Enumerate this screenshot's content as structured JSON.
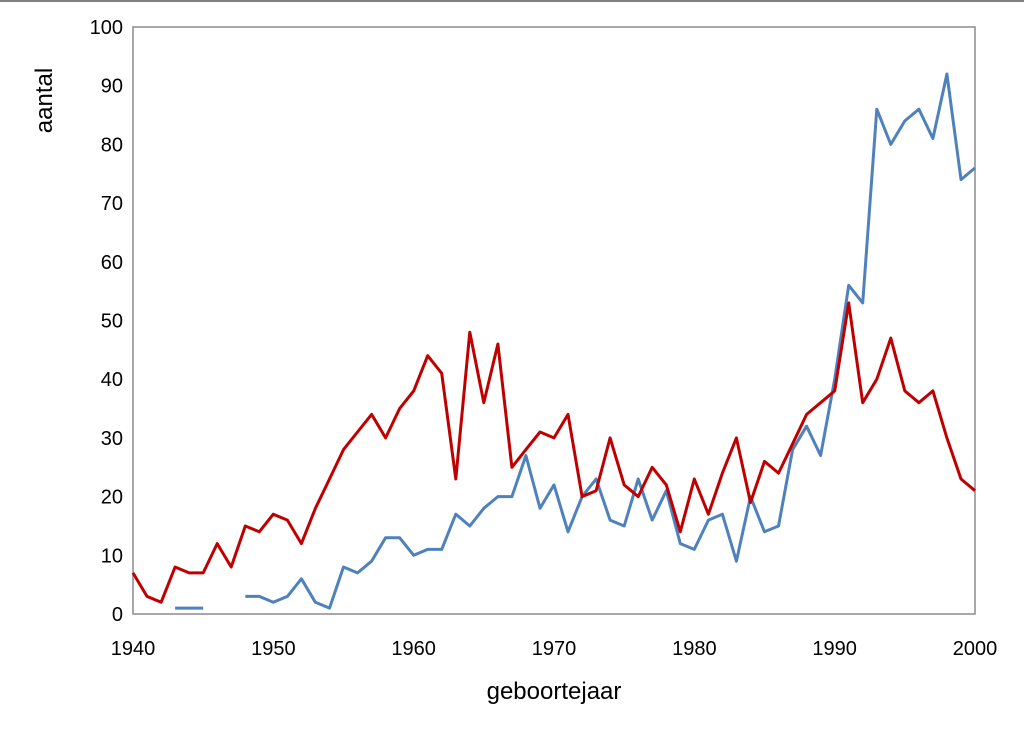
{
  "chart_data": {
    "type": "line",
    "title": "",
    "xlabel": "geboortejaar",
    "ylabel": "aantal",
    "xlim": [
      1940,
      2000
    ],
    "ylim": [
      0,
      100
    ],
    "x_ticks": [
      "1940",
      "1950",
      "1960",
      "1970",
      "1980",
      "1990",
      "2000"
    ],
    "y_ticks": [
      "0",
      "10",
      "20",
      "30",
      "40",
      "50",
      "60",
      "70",
      "80",
      "90",
      "100"
    ],
    "grid": false,
    "legend": "none",
    "series": [
      {
        "color": "#4f81bd",
        "x": [
          1940,
          1941,
          1942,
          1943,
          1944,
          1945,
          1946,
          1947,
          1948,
          1949,
          1950,
          1951,
          1952,
          1953,
          1954,
          1955,
          1956,
          1957,
          1958,
          1959,
          1960,
          1961,
          1962,
          1963,
          1964,
          1965,
          1966,
          1967,
          1968,
          1969,
          1970,
          1971,
          1972,
          1973,
          1974,
          1975,
          1976,
          1977,
          1978,
          1979,
          1980,
          1981,
          1982,
          1983,
          1984,
          1985,
          1986,
          1987,
          1988,
          1989,
          1990,
          1991,
          1992,
          1993,
          1994,
          1995,
          1996,
          1997,
          1998,
          1999,
          2000
        ],
        "values": [
          null,
          null,
          null,
          1,
          1,
          1,
          null,
          null,
          3,
          3,
          2,
          3,
          6,
          2,
          1,
          8,
          7,
          9,
          13,
          13,
          10,
          11,
          11,
          17,
          15,
          18,
          20,
          20,
          27,
          18,
          22,
          14,
          20,
          23,
          16,
          15,
          23,
          16,
          21,
          12,
          11,
          16,
          17,
          9,
          20,
          14,
          15,
          28,
          32,
          27,
          40,
          56,
          53,
          86,
          80,
          84,
          86,
          81,
          92,
          74,
          76
        ]
      },
      {
        "color": "#c00000",
        "x": [
          1940,
          1941,
          1942,
          1943,
          1944,
          1945,
          1946,
          1947,
          1948,
          1949,
          1950,
          1951,
          1952,
          1953,
          1954,
          1955,
          1956,
          1957,
          1958,
          1959,
          1960,
          1961,
          1962,
          1963,
          1964,
          1965,
          1966,
          1967,
          1968,
          1969,
          1970,
          1971,
          1972,
          1973,
          1974,
          1975,
          1976,
          1977,
          1978,
          1979,
          1980,
          1981,
          1982,
          1983,
          1984,
          1985,
          1986,
          1987,
          1988,
          1989,
          1990,
          1991,
          1992,
          1993,
          1994,
          1995,
          1996,
          1997,
          1998,
          1999,
          2000
        ],
        "values": [
          7,
          3,
          2,
          8,
          7,
          7,
          12,
          8,
          15,
          14,
          17,
          16,
          12,
          18,
          23,
          28,
          31,
          34,
          30,
          35,
          38,
          44,
          41,
          23,
          48,
          36,
          46,
          25,
          28,
          31,
          30,
          34,
          20,
          21,
          30,
          22,
          20,
          25,
          22,
          14,
          23,
          17,
          24,
          30,
          19,
          26,
          24,
          29,
          34,
          36,
          38,
          53,
          36,
          40,
          47,
          38,
          36,
          38,
          30,
          23,
          21
        ]
      }
    ]
  }
}
